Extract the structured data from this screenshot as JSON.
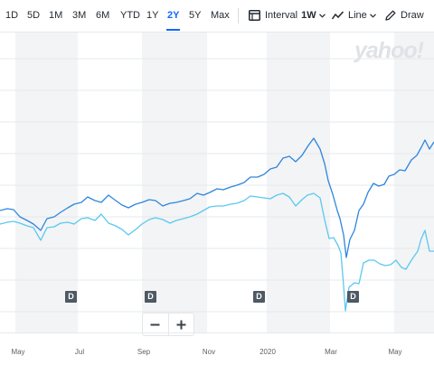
{
  "toolbar": {
    "ranges": [
      "1D",
      "5D",
      "1M",
      "3M",
      "6M",
      "YTD",
      "1Y",
      "2Y",
      "5Y",
      "Max"
    ],
    "active_range": "2Y",
    "interval_label": "Interval",
    "interval_value": "1W",
    "line_label": "Line",
    "draw_label": "Draw"
  },
  "watermark": "yahoo!",
  "dividend_marker": "D",
  "zoom": {
    "minus": "−",
    "plus": "+"
  },
  "x_axis": [
    "May",
    "Jul",
    "Sep",
    "Nov",
    "2020",
    "Mar",
    "May"
  ],
  "colors": {
    "primary": "#2e86de",
    "secondary": "#5bc8f0",
    "accent": "#0f69ff"
  }
}
